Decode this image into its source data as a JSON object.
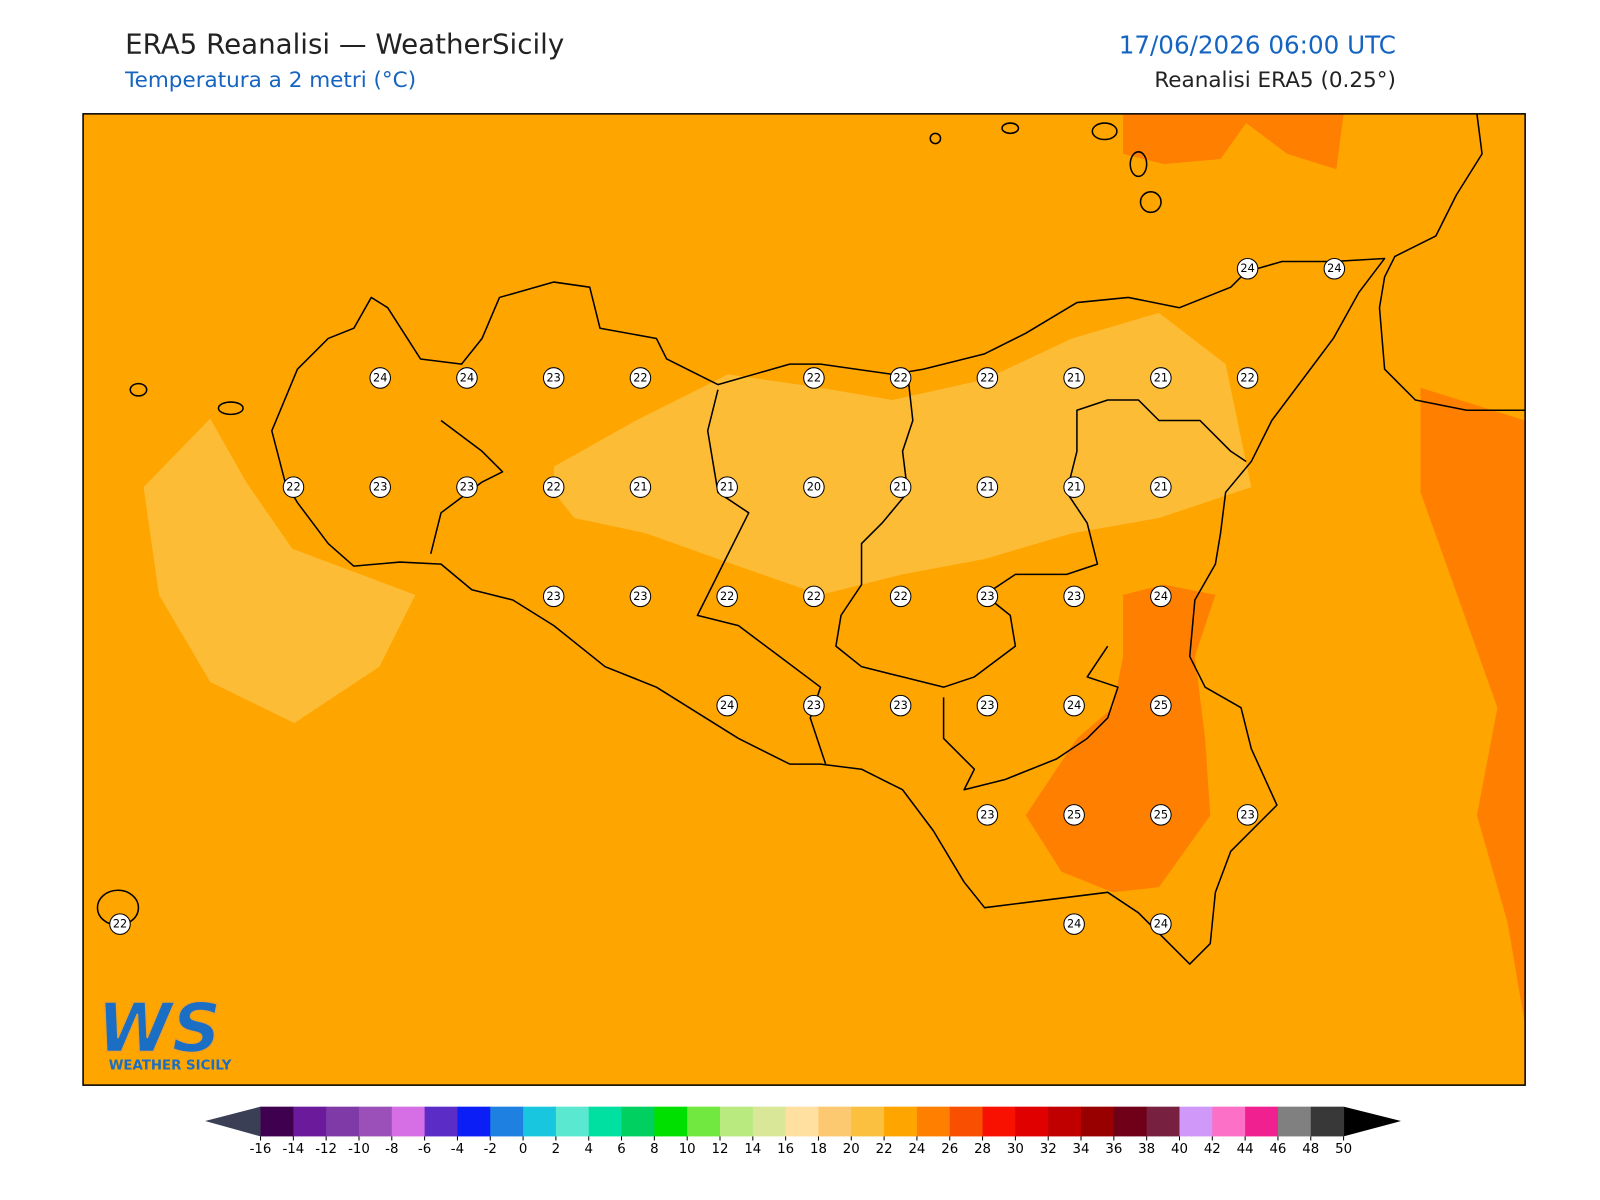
{
  "header": {
    "title": "ERA5 Reanalisi — WeatherSicily",
    "subtitle": "Temperatura a 2 metri (°C)",
    "datetime": "17/06/2026 06:00 UTC",
    "source": "Reanalisi ERA5 (0.25°)"
  },
  "stations": [
    24,
    24,
    24,
    24,
    23,
    22,
    22,
    22,
    22,
    21,
    21,
    22,
    22,
    23,
    23,
    22,
    21,
    21,
    20,
    21,
    21,
    21,
    21,
    23,
    23,
    22,
    22,
    22,
    23,
    23,
    24,
    24,
    23,
    23,
    23,
    24,
    25,
    23,
    25,
    25,
    23,
    22,
    24,
    24
  ],
  "colorbar": {
    "levels": [
      -16,
      -14,
      -12,
      -10,
      -8,
      -6,
      -4,
      -2,
      0,
      2,
      4,
      6,
      8,
      10,
      12,
      14,
      16,
      18,
      20,
      22,
      24,
      26,
      28,
      30,
      32,
      34,
      36,
      38,
      40,
      42,
      44,
      46,
      48,
      50
    ],
    "colors": [
      "#400050",
      "#6a1a9a",
      "#7f3aa8",
      "#9b4fb8",
      "#d66ee6",
      "#5b2cc6",
      "#0a1ef5",
      "#1e80e0",
      "#18c6e0",
      "#5ae8d0",
      "#00e0a0",
      "#00d060",
      "#00e000",
      "#70e840",
      "#b8ea80",
      "#d8e898",
      "#ffe0a0",
      "#fcc870",
      "#fcc040",
      "#ffa500",
      "#ff8000",
      "#f85000",
      "#f81000",
      "#e00000",
      "#c00000",
      "#980000",
      "#700018",
      "#782040",
      "#d098f8",
      "#fc70c8",
      "#f02090",
      "#808080",
      "#383838"
    ]
  },
  "logo": {
    "mark": "WS",
    "text": "WEATHER SICILY"
  }
}
